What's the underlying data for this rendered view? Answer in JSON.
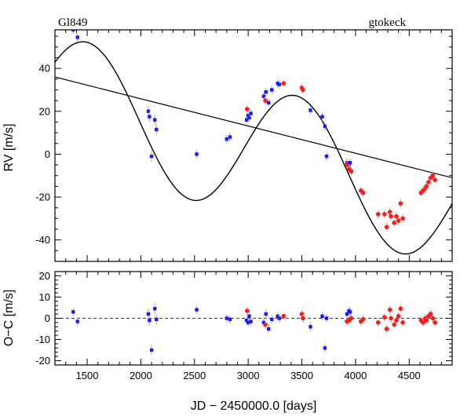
{
  "chart_data": {
    "type": "scatter",
    "title_left": "Gl849",
    "title_right": "gtokeck",
    "xlabel": "JD − 2450000.0 [days]",
    "xlim": [
      1200,
      4900
    ],
    "x_ticks": [
      1500,
      2000,
      2500,
      3000,
      3500,
      4000,
      4500
    ],
    "top_panel": {
      "ylabel": "RV [m/s]",
      "ylim": [
        -50,
        58
      ],
      "y_ticks": [
        -40,
        -20,
        0,
        20,
        40
      ],
      "fit_curve": {
        "name": "Keplerian fit",
        "color": "#000000",
        "amplitude": 30.5,
        "period": 1950,
        "peak_time": 1500,
        "offset": 25.5,
        "slope": -0.0128
      },
      "trend_line": {
        "name": "linear trend",
        "color": "#000000",
        "x": [
          1200,
          4900
        ],
        "y": [
          36,
          -11
        ]
      },
      "series": [
        {
          "name": "keck",
          "color": "#1a1aff",
          "marker": "square",
          "points": [
            [
              1370,
              58,
              2
            ],
            [
              1410,
              54.5,
              2
            ],
            [
              2070,
              20,
              2.5
            ],
            [
              2080,
              17.5,
              2.5
            ],
            [
              2100,
              -1,
              2.5
            ],
            [
              2130,
              16,
              2.5
            ],
            [
              2145,
              11.5,
              2.5
            ],
            [
              2520,
              0,
              2
            ],
            [
              2800,
              7,
              2
            ],
            [
              2830,
              8,
              2
            ],
            [
              2985,
              16,
              2
            ],
            [
              3000,
              18,
              2
            ],
            [
              3010,
              17,
              2
            ],
            [
              3025,
              19,
              2
            ],
            [
              3145,
              27,
              2
            ],
            [
              3165,
              29,
              2
            ],
            [
              3190,
              24,
              2
            ],
            [
              3220,
              30,
              2
            ],
            [
              3275,
              33,
              2
            ],
            [
              3290,
              32.5,
              2
            ],
            [
              3580,
              20.5,
              2
            ],
            [
              3690,
              17.5,
              2
            ],
            [
              3715,
              13,
              2
            ],
            [
              3730,
              -1,
              2
            ],
            [
              3920,
              -4,
              2
            ],
            [
              3940,
              -5,
              2
            ],
            [
              3950,
              -4,
              2
            ]
          ]
        },
        {
          "name": "gto",
          "color": "#ff1a1a",
          "marker": "circle",
          "points": [
            [
              2990,
              21,
              2
            ],
            [
              3160,
              25,
              2
            ],
            [
              3330,
              33,
              1.5
            ],
            [
              3500,
              31,
              2
            ],
            [
              3510,
              30,
              2
            ],
            [
              3920,
              -5,
              2
            ],
            [
              3940,
              -7,
              2
            ],
            [
              3960,
              -8,
              2
            ],
            [
              4050,
              -17,
              2
            ],
            [
              4070,
              -18,
              2
            ],
            [
              4210,
              -28,
              2
            ],
            [
              4270,
              -28,
              2
            ],
            [
              4290,
              -34,
              2
            ],
            [
              4320,
              -27,
              2
            ],
            [
              4330,
              -29,
              2
            ],
            [
              4360,
              -32,
              2
            ],
            [
              4380,
              -29,
              2
            ],
            [
              4400,
              -31,
              2
            ],
            [
              4420,
              -23,
              2
            ],
            [
              4440,
              -30,
              2
            ],
            [
              4610,
              -18,
              2
            ],
            [
              4630,
              -17,
              2
            ],
            [
              4650,
              -16,
              2
            ],
            [
              4660,
              -15,
              2
            ],
            [
              4680,
              -13,
              2
            ],
            [
              4700,
              -11,
              2
            ],
            [
              4720,
              -10,
              2
            ],
            [
              4740,
              -12,
              2
            ]
          ]
        }
      ]
    },
    "bottom_panel": {
      "ylabel": "O−C [m/s]",
      "ylim": [
        -22,
        22
      ],
      "y_ticks": [
        -20,
        -10,
        0,
        10,
        20
      ],
      "series": [
        {
          "name": "keck",
          "color": "#1a1aff",
          "marker": "square",
          "points": [
            [
              1370,
              3,
              2
            ],
            [
              1410,
              -1.5,
              2
            ],
            [
              2070,
              2,
              2.5
            ],
            [
              2080,
              -1,
              2.5
            ],
            [
              2100,
              -15,
              2.5
            ],
            [
              2130,
              4.5,
              2.5
            ],
            [
              2145,
              -0.5,
              2.5
            ],
            [
              2520,
              4,
              2
            ],
            [
              2800,
              0,
              2
            ],
            [
              2830,
              -0.5,
              2
            ],
            [
              2985,
              -1,
              2
            ],
            [
              3000,
              -2,
              2
            ],
            [
              3010,
              1,
              2
            ],
            [
              3025,
              -1.5,
              2
            ],
            [
              3145,
              -2,
              2
            ],
            [
              3165,
              2,
              2
            ],
            [
              3190,
              -5,
              2
            ],
            [
              3220,
              -0.5,
              2
            ],
            [
              3275,
              1,
              2
            ],
            [
              3290,
              0,
              2
            ],
            [
              3580,
              -4,
              2
            ],
            [
              3690,
              1,
              2
            ],
            [
              3715,
              -14,
              2
            ],
            [
              3730,
              0,
              2
            ],
            [
              3920,
              2,
              2
            ],
            [
              3940,
              3.5,
              2
            ],
            [
              3950,
              3,
              2
            ]
          ]
        },
        {
          "name": "gto",
          "color": "#ff1a1a",
          "marker": "circle",
          "points": [
            [
              2990,
              3.5,
              2
            ],
            [
              3160,
              -3,
              2
            ],
            [
              3330,
              1,
              1.5
            ],
            [
              3500,
              2,
              2
            ],
            [
              3510,
              0,
              2
            ],
            [
              3920,
              -1.5,
              2
            ],
            [
              3940,
              -1,
              2
            ],
            [
              3960,
              0,
              2
            ],
            [
              4050,
              -1.5,
              2
            ],
            [
              4070,
              -0.5,
              2
            ],
            [
              4210,
              -2,
              2
            ],
            [
              4270,
              0.5,
              2
            ],
            [
              4290,
              -5,
              2
            ],
            [
              4320,
              4,
              2
            ],
            [
              4330,
              0,
              2
            ],
            [
              4360,
              -3,
              2
            ],
            [
              4380,
              -1,
              2
            ],
            [
              4400,
              1,
              2
            ],
            [
              4420,
              4.5,
              2
            ],
            [
              4440,
              -2,
              2
            ],
            [
              4610,
              -1,
              2
            ],
            [
              4630,
              -2,
              2
            ],
            [
              4650,
              0,
              2
            ],
            [
              4660,
              -1,
              2
            ],
            [
              4680,
              1,
              2
            ],
            [
              4700,
              2,
              2
            ],
            [
              4720,
              0,
              2
            ],
            [
              4740,
              -2,
              2
            ]
          ]
        }
      ]
    }
  }
}
